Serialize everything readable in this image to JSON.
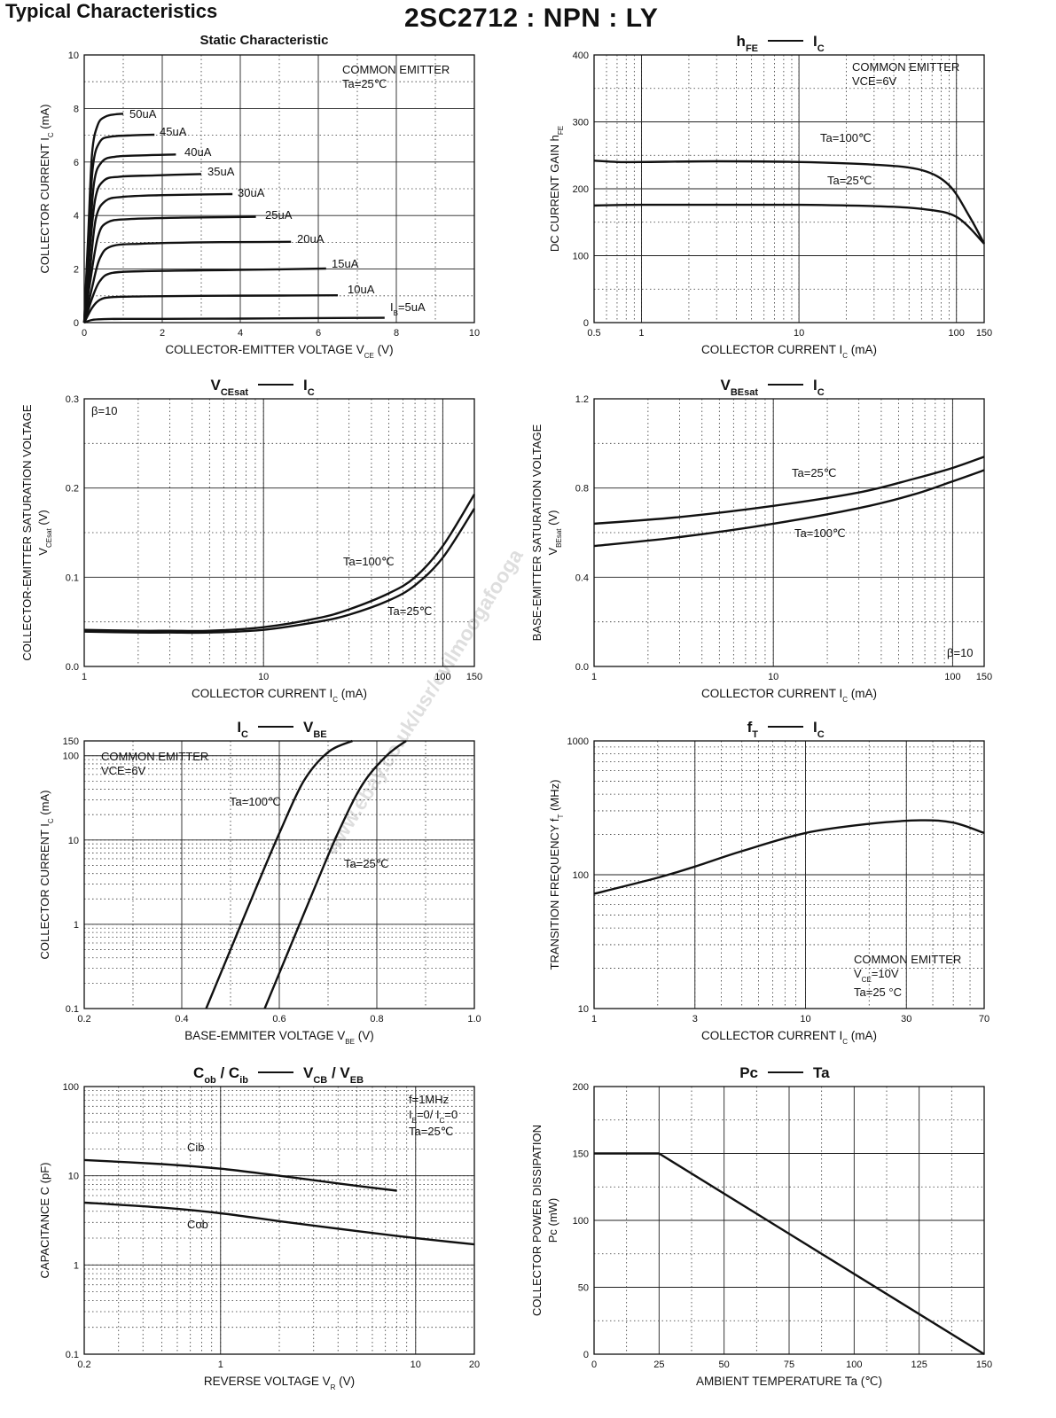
{
  "header": {
    "title": "Typical Characteristics",
    "part": "2SC2712 : NPN : LY",
    "watermark": "www.ebay.co.uk/usr/evilmoogafooga"
  },
  "chart_data": [
    {
      "id": "static",
      "type": "line",
      "title": "Static Characteristic",
      "xlabel": "COLLECTOR-EMITTER VOLTAGE   V_CE   (V)",
      "ylabel": "COLLECTOR CURRENT   I_C   (mA)",
      "xscale": "linear",
      "yscale": "linear",
      "xlim": [
        0,
        10
      ],
      "ylim": [
        0,
        10
      ],
      "xticks": [
        0,
        2,
        4,
        6,
        8,
        10
      ],
      "yticks": [
        0,
        2,
        4,
        6,
        8,
        10
      ],
      "xtick_labels": [
        "0",
        "2",
        "4",
        "6",
        "8",
        "10"
      ],
      "ytick_labels": [
        "0",
        "2",
        "4",
        "6",
        "8",
        "10"
      ],
      "annotations": [
        "COMMON EMITTER",
        "Ta=25℃"
      ],
      "series": [
        {
          "name": "I_B=5uA",
          "x": [
            0,
            0.2,
            0.5,
            1.0,
            2,
            4,
            6,
            7.7
          ],
          "y": [
            0,
            0.1,
            0.13,
            0.14,
            0.14,
            0.15,
            0.17,
            0.18
          ]
        },
        {
          "name": "10uA",
          "x": [
            0,
            0.2,
            0.4,
            0.7,
            1.5,
            3,
            5,
            6.5
          ],
          "y": [
            0,
            0.55,
            0.85,
            0.95,
            0.98,
            1.0,
            1.01,
            1.02
          ]
        },
        {
          "name": "15uA",
          "x": [
            0,
            0.2,
            0.4,
            0.7,
            1.5,
            3,
            5,
            6.2
          ],
          "y": [
            0,
            0.9,
            1.55,
            1.85,
            1.92,
            1.95,
            1.99,
            2.02
          ]
        },
        {
          "name": "20uA",
          "x": [
            0,
            0.2,
            0.4,
            0.7,
            1.5,
            3,
            4.5,
            5.3
          ],
          "y": [
            0,
            1.3,
            2.4,
            2.85,
            2.95,
            3.0,
            3.01,
            3.02
          ]
        },
        {
          "name": "25uA",
          "x": [
            0,
            0.15,
            0.35,
            0.6,
            1.2,
            2.5,
            4.4
          ],
          "y": [
            0,
            1.5,
            3.2,
            3.75,
            3.87,
            3.92,
            3.95
          ]
        },
        {
          "name": "30uA",
          "x": [
            0,
            0.15,
            0.3,
            0.55,
            1.0,
            2,
            3.8
          ],
          "y": [
            0,
            2.0,
            3.9,
            4.55,
            4.7,
            4.76,
            4.8
          ]
        },
        {
          "name": "35uA",
          "x": [
            0,
            0.12,
            0.28,
            0.5,
            0.9,
            1.8,
            3.0
          ],
          "y": [
            0,
            2.3,
            4.6,
            5.3,
            5.45,
            5.5,
            5.55
          ]
        },
        {
          "name": "40uA",
          "x": [
            0,
            0.12,
            0.25,
            0.45,
            0.8,
            1.5,
            2.35
          ],
          "y": [
            0,
            2.6,
            5.2,
            6.0,
            6.2,
            6.25,
            6.28
          ]
        },
        {
          "name": "45uA",
          "x": [
            0,
            0.1,
            0.22,
            0.4,
            0.7,
            1.3,
            1.8
          ],
          "y": [
            0,
            2.9,
            5.8,
            6.75,
            6.95,
            7.0,
            7.02
          ]
        },
        {
          "name": "50uA",
          "x": [
            0,
            0.1,
            0.2,
            0.35,
            0.55,
            0.8,
            1.0
          ],
          "y": [
            0,
            3.2,
            6.3,
            7.4,
            7.7,
            7.78,
            7.8
          ]
        }
      ]
    },
    {
      "id": "hfe",
      "type": "line",
      "title": "h_FE — I_C",
      "xlabel": "COLLECTOR CURRENT   I_C   (mA)",
      "ylabel": "DC CURRENT GAIN   h_FE",
      "xscale": "log",
      "yscale": "linear",
      "xlim": [
        0.5,
        150
      ],
      "ylim": [
        0,
        400
      ],
      "xticks": [
        0.5,
        1,
        10,
        100,
        150
      ],
      "yticks": [
        0,
        100,
        200,
        300,
        400
      ],
      "xtick_labels": [
        "0.5",
        "1",
        "10",
        "100",
        "150"
      ],
      "ytick_labels": [
        "0",
        "100",
        "200",
        "300",
        "400"
      ],
      "annotations": [
        "COMMON EMITTER",
        "VCE=6V"
      ],
      "series": [
        {
          "name": "Ta=100℃",
          "x": [
            0.5,
            0.7,
            1,
            3,
            10,
            30,
            60,
            90,
            120,
            150
          ],
          "y": [
            242,
            240,
            240,
            241,
            240,
            236,
            228,
            205,
            160,
            118
          ]
        },
        {
          "name": "Ta=25℃",
          "x": [
            0.5,
            1,
            3,
            10,
            30,
            60,
            100,
            150
          ],
          "y": [
            175,
            176,
            176,
            176,
            174,
            170,
            158,
            118
          ]
        }
      ]
    },
    {
      "id": "vcesat",
      "type": "line",
      "title": "V_CEsat — I_C",
      "xlabel": "COLLECTOR CURRENT   I_C   (mA)",
      "ylabel": "COLLECTOR-EMITTER SATURATION VOLTAGE   V_CEsat   (V)",
      "xscale": "log",
      "yscale": "linear",
      "xlim": [
        1,
        150
      ],
      "ylim": [
        0,
        0.3
      ],
      "xticks": [
        1,
        10,
        100,
        150
      ],
      "yticks": [
        0,
        0.1,
        0.2,
        0.3
      ],
      "xtick_labels": [
        "1",
        "10",
        "100",
        "150"
      ],
      "ytick_labels": [
        "0.0",
        "0.1",
        "0.2",
        "0.3"
      ],
      "annotations": [
        "β=10"
      ],
      "series": [
        {
          "name": "Ta=100℃",
          "x": [
            1,
            2,
            3,
            5,
            10,
            20,
            30,
            50,
            70,
            100,
            150
          ],
          "y": [
            0.041,
            0.04,
            0.04,
            0.04,
            0.044,
            0.054,
            0.064,
            0.082,
            0.1,
            0.135,
            0.193
          ]
        },
        {
          "name": "Ta=25℃",
          "x": [
            1,
            2,
            3,
            5,
            10,
            20,
            30,
            50,
            70,
            100,
            150
          ],
          "y": [
            0.039,
            0.038,
            0.038,
            0.038,
            0.041,
            0.05,
            0.058,
            0.074,
            0.091,
            0.122,
            0.177
          ]
        }
      ]
    },
    {
      "id": "vbesat",
      "type": "line",
      "title": "V_BEsat — I_C",
      "xlabel": "COLLECTOR CURRENT   I_C   (mA)",
      "ylabel": "BASE-EMITTER SATURATION VOLTAGE   V_BEsat   (V)",
      "xscale": "log",
      "yscale": "linear",
      "xlim": [
        1,
        150
      ],
      "ylim": [
        0,
        1.2
      ],
      "xticks": [
        1,
        10,
        100,
        150
      ],
      "yticks": [
        0,
        0.4,
        0.8,
        1.2
      ],
      "xtick_labels": [
        "1",
        "10",
        "100",
        "150"
      ],
      "ytick_labels": [
        "0.0",
        "0.4",
        "0.8",
        "1.2"
      ],
      "annotations": [
        "β=10"
      ],
      "series": [
        {
          "name": "Ta=25℃",
          "x": [
            1,
            3,
            10,
            30,
            60,
            100,
            150
          ],
          "y": [
            0.64,
            0.67,
            0.72,
            0.78,
            0.84,
            0.89,
            0.94
          ]
        },
        {
          "name": "Ta=100℃",
          "x": [
            1,
            3,
            10,
            30,
            60,
            100,
            150
          ],
          "y": [
            0.54,
            0.58,
            0.64,
            0.71,
            0.77,
            0.83,
            0.88
          ]
        }
      ]
    },
    {
      "id": "icvbe",
      "type": "line",
      "title": "I_C — V_BE",
      "xlabel": "BASE-EMMITER VOLTAGE   V_BE   (V)",
      "ylabel": "COLLECTOR CURRENT   I_C   (mA)",
      "xscale": "linear",
      "yscale": "log",
      "xlim": [
        0.2,
        1.0
      ],
      "ylim": [
        0.1,
        150
      ],
      "xticks": [
        0.2,
        0.4,
        0.6,
        0.8,
        1.0
      ],
      "yticks": [
        0.1,
        1,
        10,
        100,
        150
      ],
      "xtick_labels": [
        "0.2",
        "0.4",
        "0.6",
        "0.8",
        "1.0"
      ],
      "ytick_labels": [
        "0.1",
        "1",
        "10",
        "100",
        "150"
      ],
      "annotations": [
        "COMMON EMITTER",
        "VCE=6V"
      ],
      "series": [
        {
          "name": "Ta=100℃",
          "x": [
            0.45,
            0.5,
            0.55,
            0.6,
            0.65,
            0.7,
            0.75
          ],
          "y": [
            0.1,
            0.5,
            2.5,
            12,
            50,
            110,
            150
          ]
        },
        {
          "name": "Ta=25℃",
          "x": [
            0.57,
            0.62,
            0.67,
            0.72,
            0.77,
            0.82,
            0.86
          ],
          "y": [
            0.1,
            0.5,
            2.5,
            12,
            45,
            100,
            150
          ]
        }
      ]
    },
    {
      "id": "ft",
      "type": "line",
      "title": "f_T — I_C",
      "xlabel": "COLLECTOR CURRENT   I_C   (mA)",
      "ylabel": "TRANSITION FREQUENCY   f_T   (MHz)",
      "xscale": "log",
      "yscale": "log",
      "xlim": [
        1,
        70
      ],
      "ylim": [
        10,
        1000
      ],
      "xticks": [
        1,
        3,
        10,
        30,
        70
      ],
      "yticks": [
        10,
        100,
        1000
      ],
      "xtick_labels": [
        "1",
        "3",
        "10",
        "30",
        "70"
      ],
      "ytick_labels": [
        "10",
        "100",
        "1000"
      ],
      "annotations": [
        "COMMON EMITTER",
        "V_CE=10V",
        "Ta=25 °C"
      ],
      "series": [
        {
          "name": "f_T",
          "x": [
            1,
            2,
            3,
            5,
            10,
            20,
            35,
            50,
            70
          ],
          "y": [
            72,
            95,
            115,
            150,
            205,
            240,
            255,
            245,
            205
          ]
        }
      ]
    },
    {
      "id": "cap",
      "type": "line",
      "title": "C_ob / C_ib — V_CB / V_EB",
      "xlabel": "REVERSE VOLTAGE   V_R   (V)",
      "ylabel": "CAPACITANCE   C   (pF)",
      "xscale": "log",
      "yscale": "log",
      "xlim": [
        0.2,
        20
      ],
      "ylim": [
        0.1,
        100
      ],
      "xticks": [
        0.2,
        1,
        10,
        20
      ],
      "yticks": [
        0.1,
        1,
        10,
        100
      ],
      "xtick_labels": [
        "0.2",
        "1",
        "10",
        "20"
      ],
      "ytick_labels": [
        "0.1",
        "1",
        "10",
        "100"
      ],
      "annotations": [
        "f=1MHz",
        "I_E=0/ I_C=0",
        "Ta=25℃"
      ],
      "series": [
        {
          "name": "Cib",
          "x": [
            0.2,
            0.5,
            1,
            2,
            4,
            8
          ],
          "y": [
            15,
            13.5,
            12,
            10,
            8.2,
            6.8
          ]
        },
        {
          "name": "Cob",
          "x": [
            0.2,
            0.5,
            1,
            2,
            5,
            10,
            20
          ],
          "y": [
            5,
            4.4,
            3.8,
            3.1,
            2.4,
            2.0,
            1.7
          ]
        }
      ]
    },
    {
      "id": "pc",
      "type": "line",
      "title": "Pc — Ta",
      "xlabel": "AMBIENT TEMPERATURE   Ta   (℃)",
      "ylabel": "COLLECTOR POWER DISSIPATION   Pc   (mW)",
      "xscale": "linear",
      "yscale": "linear",
      "xlim": [
        0,
        150
      ],
      "ylim": [
        0,
        200
      ],
      "xticks": [
        0,
        25,
        50,
        75,
        100,
        125,
        150
      ],
      "yticks": [
        0,
        50,
        100,
        150,
        200
      ],
      "xtick_labels": [
        "0",
        "25",
        "50",
        "75",
        "100",
        "125",
        "150"
      ],
      "ytick_labels": [
        "0",
        "50",
        "100",
        "150",
        "200"
      ],
      "annotations": [],
      "series": [
        {
          "name": "Pc",
          "x": [
            0,
            25,
            150
          ],
          "y": [
            150,
            150,
            0
          ]
        }
      ]
    }
  ]
}
